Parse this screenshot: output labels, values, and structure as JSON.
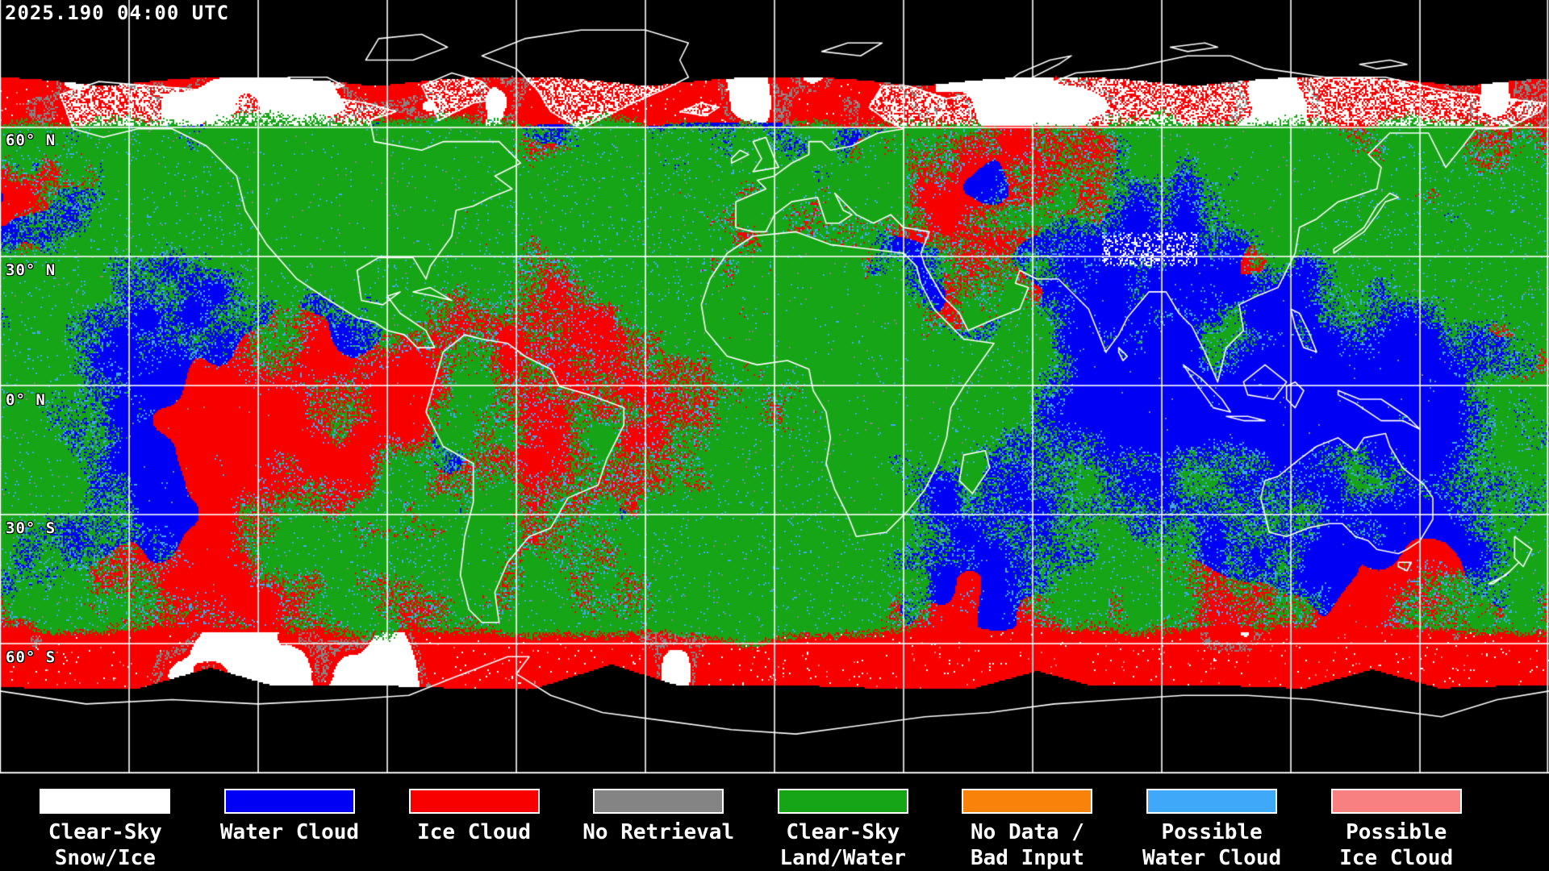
{
  "header": {
    "timestamp": "2025.190 04:00 UTC"
  },
  "map": {
    "latitude_labels": [
      "60° N",
      "30° N",
      "0° N",
      "30° S",
      "60° S"
    ],
    "grid_color": "#ffffff",
    "coastline_color": "#ffffff",
    "background_color": "#000000"
  },
  "classes": {
    "clear_sky_snow_ice": "#ffffff",
    "water_cloud": "#0000f4",
    "ice_cloud": "#f80000",
    "no_retrieval": "#848484",
    "clear_sky_land_water": "#16a516",
    "no_data_bad_input": "#f8820a",
    "possible_water_cloud": "#3fa8f8",
    "possible_ice_cloud": "#f98080"
  },
  "legend": {
    "items": [
      {
        "key": "clear-sky-snow-ice",
        "color": "#ffffff",
        "line1": "Clear-Sky",
        "line2": "Snow/Ice"
      },
      {
        "key": "water-cloud",
        "color": "#0000f4",
        "line1": "Water Cloud",
        "line2": ""
      },
      {
        "key": "ice-cloud",
        "color": "#f80000",
        "line1": "Ice Cloud",
        "line2": ""
      },
      {
        "key": "no-retrieval",
        "color": "#848484",
        "line1": "No Retrieval",
        "line2": ""
      },
      {
        "key": "clear-sky-land-water",
        "color": "#16a516",
        "line1": "Clear-Sky",
        "line2": "Land/Water"
      },
      {
        "key": "no-data-bad-input",
        "color": "#f8820a",
        "line1": "No Data /",
        "line2": "Bad Input"
      },
      {
        "key": "possible-water-cloud",
        "color": "#3fa8f8",
        "line1": "Possible",
        "line2": "Water Cloud"
      },
      {
        "key": "possible-ice-cloud",
        "color": "#f98080",
        "line1": "Possible",
        "line2": "Ice Cloud"
      }
    ]
  }
}
